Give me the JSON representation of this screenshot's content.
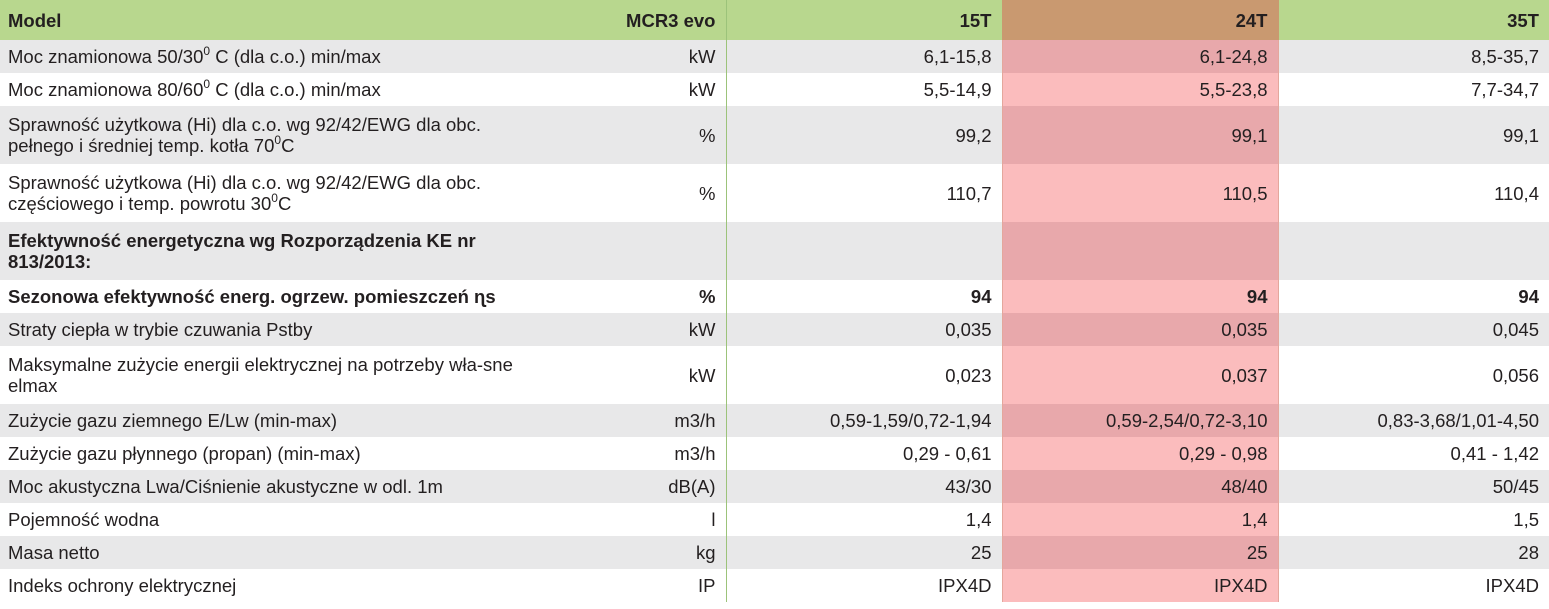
{
  "header": {
    "model": "Model",
    "series": "MCR3 evo",
    "models": [
      "15T",
      "24T",
      "35T"
    ]
  },
  "rows": [
    {
      "label": "Moc znamionowa 50/30",
      "sup": "0",
      "rest": " C (dla c.o.) min/max",
      "unit": "kW",
      "values": [
        "6,1-15,8",
        "6,1-24,8",
        "8,5-35,7"
      ]
    },
    {
      "label": "Moc znamionowa 80/60",
      "sup": "0",
      "rest": " C (dla c.o.) min/max",
      "unit": "kW",
      "values": [
        "5,5-14,9",
        "5,5-23,8",
        "7,7-34,7"
      ]
    },
    {
      "label": "Sprawność użytkowa (Hi) dla c.o. wg 92/42/EWG dla obc. pełnego i średniej temp. kotła 70",
      "sup": "0",
      "rest": "C",
      "unit": "%",
      "values": [
        "99,2",
        "99,1",
        "99,1"
      ]
    },
    {
      "label": "Sprawność użytkowa (Hi) dla c.o. wg 92/42/EWG dla obc. częściowego i temp. powrotu 30",
      "sup": "0",
      "rest": "C",
      "unit": "%",
      "values": [
        "110,7",
        "110,5",
        "110,4"
      ]
    },
    {
      "label": "Efektywność energetyczna wg Rozporządzenia KE nr 813/2013:",
      "sup": "",
      "rest": "",
      "unit": "",
      "values": [
        "",
        "",
        ""
      ]
    },
    {
      "label": "Sezonowa efektywność energ. ogrzew. pomieszczeń ɳs",
      "sup": "",
      "rest": "",
      "unit": "%",
      "values": [
        "94",
        "94",
        "94"
      ]
    },
    {
      "label": "Straty ciepła w trybie czuwania Pstby",
      "sup": "",
      "rest": "",
      "unit": "kW",
      "values": [
        "0,035",
        "0,035",
        "0,045"
      ]
    },
    {
      "label": "Maksymalne zużycie energii elektrycznej na potrzeby wła-sne elmax",
      "sup": "",
      "rest": "",
      "unit": "kW",
      "values": [
        "0,023",
        "0,037",
        "0,056"
      ]
    },
    {
      "label": "Zużycie gazu ziemnego E/Lw (min-max)",
      "sup": "",
      "rest": "",
      "unit": "m3/h",
      "values": [
        "0,59-1,59/0,72-1,94",
        "0,59-2,54/0,72-3,10",
        "0,83-3,68/1,01-4,50"
      ]
    },
    {
      "label": "Zużycie gazu płynnego (propan) (min-max)",
      "sup": "",
      "rest": "",
      "unit": "m3/h",
      "values": [
        "0,29 - 0,61",
        "0,29 - 0,98",
        "0,41 - 1,42"
      ]
    },
    {
      "label": "Moc akustyczna Lwa/Ciśnienie akustyczne w odl. 1m",
      "sup": "",
      "rest": "",
      "unit": "dB(A)",
      "values": [
        "43/30",
        "48/40",
        "50/45"
      ]
    },
    {
      "label": "Pojemność wodna",
      "sup": "",
      "rest": "",
      "unit": "l",
      "values": [
        "1,4",
        "1,4",
        "1,5"
      ]
    },
    {
      "label": "Masa netto",
      "sup": "",
      "rest": "",
      "unit": "kg",
      "values": [
        "25",
        "25",
        "28"
      ]
    },
    {
      "label": "Indeks ochrony elektrycznej",
      "sup": "",
      "rest": "",
      "unit": "IP",
      "values": [
        "IPX4D",
        "IPX4D",
        "IPX4D"
      ]
    }
  ]
}
